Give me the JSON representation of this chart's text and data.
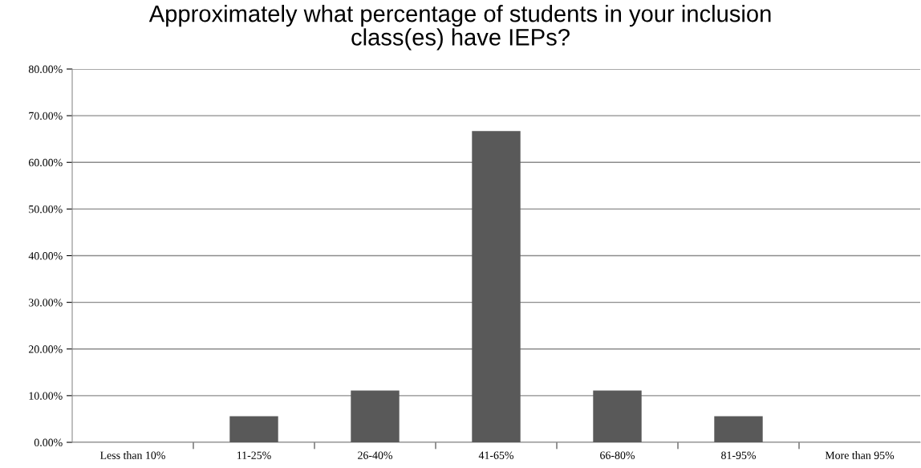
{
  "chart_data": {
    "type": "bar",
    "title": "Approximately what percentage of students in your inclusion\nclass(es) have IEPs?",
    "categories": [
      "Less than 10%",
      "11-25%",
      "26-40%",
      "41-65%",
      "66-80%",
      "81-95%",
      "More than 95%"
    ],
    "values": [
      0,
      5.6,
      11.1,
      66.7,
      11.1,
      5.6,
      0
    ],
    "color": "#595959",
    "ylim": [
      0,
      80
    ],
    "yticks": [
      {
        "value": 0,
        "label": "0.00%"
      },
      {
        "value": 10,
        "label": "10.00%"
      },
      {
        "value": 20,
        "label": "20.00%"
      },
      {
        "value": 30,
        "label": "30.00%"
      },
      {
        "value": 40,
        "label": "40.00%"
      },
      {
        "value": 50,
        "label": "50.00%"
      },
      {
        "value": 60,
        "label": "60.00%"
      },
      {
        "value": 70,
        "label": "70.00%"
      },
      {
        "value": 80,
        "label": "80.00%"
      }
    ],
    "grid": "y"
  }
}
